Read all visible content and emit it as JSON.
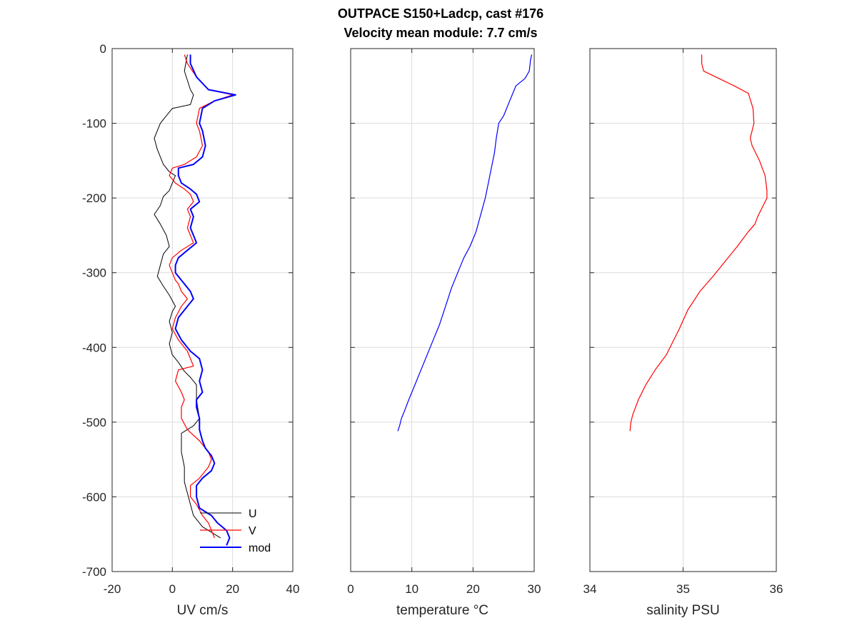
{
  "figure": {
    "title_line1": "OUTPACE S150+Ladcp, cast #176",
    "title_line2": "Velocity mean module:  7.7 cm/s"
  },
  "chart_data": [
    {
      "type": "line",
      "xlabel": "UV cm/s",
      "ylabel": "",
      "xlim": [
        -20,
        40
      ],
      "ylim": [
        -700,
        0
      ],
      "xticks": [
        -20,
        0,
        20,
        40
      ],
      "yticks": [
        -700,
        -600,
        -500,
        -400,
        -300,
        -200,
        -100,
        0
      ],
      "grid": true,
      "legend": "bottom-right",
      "series": [
        {
          "name": "U",
          "color": "#000000",
          "width": 1,
          "x": [
            5,
            4,
            6,
            7,
            6,
            0,
            -2,
            -4,
            -6,
            -5,
            -4,
            -3,
            -1,
            1,
            0,
            -1,
            -3,
            -4,
            -6,
            -4,
            -2,
            -1,
            -3,
            -4,
            -5,
            -3,
            -1,
            1,
            0,
            -1,
            0,
            -1,
            0,
            2,
            4,
            6,
            8,
            8,
            9,
            7,
            3,
            3,
            4,
            4,
            5,
            6,
            7,
            10,
            16
          ],
          "y": [
            -8,
            -30,
            -55,
            -62,
            -75,
            -80,
            -90,
            -100,
            -120,
            -135,
            -145,
            -155,
            -165,
            -170,
            -180,
            -190,
            -198,
            -210,
            -222,
            -235,
            -250,
            -265,
            -275,
            -290,
            -305,
            -318,
            -330,
            -345,
            -352,
            -365,
            -380,
            -395,
            -410,
            -420,
            -432,
            -440,
            -450,
            -470,
            -495,
            -505,
            -515,
            -540,
            -560,
            -580,
            -595,
            -610,
            -625,
            -640,
            -655
          ]
        },
        {
          "name": "V",
          "color": "#ff0000",
          "width": 1.2,
          "x": [
            4,
            5,
            8,
            12,
            20,
            14,
            9,
            8,
            9,
            10,
            8,
            4,
            0,
            -1,
            1,
            4,
            6,
            7,
            5,
            6,
            5,
            6,
            7,
            3,
            0,
            -1,
            0,
            1,
            2,
            3,
            5,
            3,
            1,
            0,
            2,
            5,
            6,
            7,
            2,
            1,
            3,
            4,
            3,
            3,
            5,
            9,
            12,
            13,
            12,
            9,
            6,
            6,
            8,
            10,
            12,
            13,
            14
          ],
          "y": [
            -8,
            -20,
            -38,
            -55,
            -62,
            -70,
            -80,
            -100,
            -110,
            -130,
            -145,
            -155,
            -160,
            -170,
            -180,
            -188,
            -195,
            -205,
            -215,
            -225,
            -240,
            -250,
            -260,
            -270,
            -280,
            -290,
            -300,
            -310,
            -315,
            -325,
            -335,
            -345,
            -360,
            -375,
            -390,
            -405,
            -415,
            -425,
            -430,
            -445,
            -460,
            -470,
            -480,
            -495,
            -510,
            -525,
            -540,
            -550,
            -560,
            -575,
            -585,
            -600,
            -610,
            -625,
            -635,
            -645,
            -655
          ]
        },
        {
          "name": "mod",
          "color": "#0000ff",
          "width": 2,
          "x": [
            6,
            6,
            8,
            12,
            21,
            14,
            10,
            9,
            10,
            11,
            10,
            7,
            2,
            2,
            3,
            6,
            8,
            9,
            6,
            7,
            6,
            7,
            8,
            5,
            2,
            1,
            1,
            3,
            4,
            6,
            7,
            5,
            2,
            1,
            3,
            6,
            9,
            10,
            9,
            10,
            8,
            8,
            9,
            9,
            10,
            11,
            13,
            14,
            13,
            10,
            8,
            8,
            9,
            13,
            15,
            18,
            19,
            18
          ],
          "y": [
            -8,
            -20,
            -38,
            -55,
            -62,
            -70,
            -80,
            -100,
            -110,
            -130,
            -145,
            -155,
            -160,
            -170,
            -180,
            -188,
            -195,
            -205,
            -215,
            -225,
            -240,
            -250,
            -260,
            -270,
            -280,
            -290,
            -300,
            -310,
            -315,
            -325,
            -335,
            -345,
            -360,
            -375,
            -390,
            -405,
            -415,
            -430,
            -445,
            -460,
            -470,
            -480,
            -495,
            -510,
            -525,
            -535,
            -545,
            -555,
            -565,
            -575,
            -585,
            -600,
            -615,
            -625,
            -635,
            -645,
            -655,
            -665
          ]
        }
      ],
      "legend_entries": [
        "U",
        "V",
        "mod"
      ]
    },
    {
      "type": "line",
      "xlabel": "temperature °C",
      "xlim": [
        0,
        30
      ],
      "ylim": [
        -700,
        0
      ],
      "xticks": [
        0,
        10,
        20,
        30
      ],
      "grid": true,
      "series": [
        {
          "color": "#0000ff",
          "width": 1.2,
          "x": [
            29.6,
            29.4,
            29.2,
            28.5,
            27.0,
            26.0,
            25.0,
            24.2,
            23.8,
            23.5,
            23.0,
            22.5,
            22.0,
            21.5,
            21.0,
            20.5,
            19.5,
            18.5,
            17.5,
            16.5,
            15.5,
            14.5,
            13.5,
            12.5,
            11.5,
            10.5,
            9.5,
            8.8,
            8.3,
            8.0,
            7.7
          ],
          "y": [
            -8,
            -15,
            -30,
            -40,
            -50,
            -70,
            -90,
            -100,
            -120,
            -140,
            -160,
            -180,
            -200,
            -215,
            -230,
            -245,
            -265,
            -280,
            -300,
            -320,
            -345,
            -370,
            -390,
            -410,
            -430,
            -450,
            -470,
            -485,
            -495,
            -505,
            -512
          ]
        }
      ]
    },
    {
      "type": "line",
      "xlabel": "salinity PSU",
      "xlim": [
        34,
        36
      ],
      "ylim": [
        -700,
        0
      ],
      "xticks": [
        34,
        35,
        36
      ],
      "grid": true,
      "series": [
        {
          "color": "#ff0000",
          "width": 1.2,
          "x": [
            35.2,
            35.2,
            35.22,
            35.35,
            35.55,
            35.7,
            35.75,
            35.76,
            35.72,
            35.74,
            35.82,
            35.88,
            35.9,
            35.9,
            35.86,
            35.8,
            35.77,
            35.7,
            35.58,
            35.45,
            35.32,
            35.18,
            35.05,
            34.96,
            34.88,
            34.82,
            34.7,
            34.6,
            34.52,
            34.46,
            34.44,
            34.43
          ],
          "y": [
            -8,
            -20,
            -30,
            -38,
            -50,
            -60,
            -80,
            -100,
            -120,
            -130,
            -150,
            -170,
            -190,
            -200,
            -210,
            -225,
            -235,
            -245,
            -265,
            -285,
            -305,
            -325,
            -350,
            -375,
            -395,
            -410,
            -430,
            -450,
            -470,
            -490,
            -500,
            -512
          ]
        }
      ]
    }
  ]
}
